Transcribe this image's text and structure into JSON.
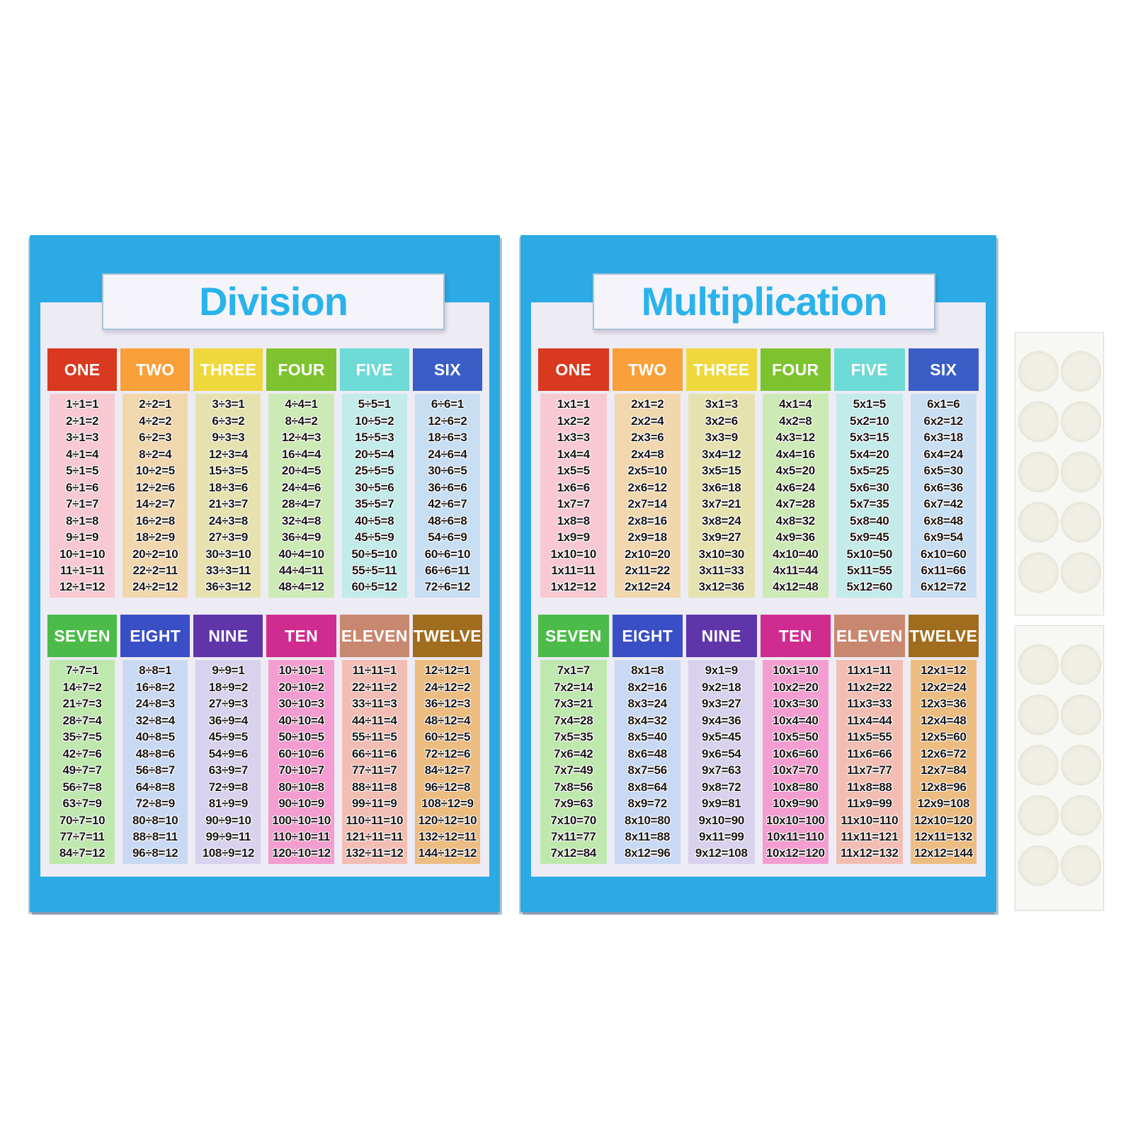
{
  "scene": {
    "background": "#ffffff"
  },
  "posters": [
    {
      "id": "division-poster",
      "title": "Division",
      "colors": {
        "frame": "#2caae3",
        "panel": "#edebf3",
        "title_text": "#2ab3ea",
        "title_box_bg": "#f5f4fa",
        "title_box_border": "#a9c3d6",
        "fact_text": "#181414"
      },
      "blocks": [
        {
          "columns": [
            {
              "label": "ONE",
              "header_color": "#d8391f",
              "body_color": "#f8c9d3",
              "facts": [
                "1÷1=1",
                "2÷1=2",
                "3÷1=3",
                "4÷1=4",
                "5÷1=5",
                "6÷1=6",
                "7÷1=7",
                "8÷1=8",
                "9÷1=9",
                "10÷1=10",
                "11÷1=11",
                "12÷1=12"
              ]
            },
            {
              "label": "TWO",
              "header_color": "#f9a03a",
              "body_color": "#f1d7ad",
              "facts": [
                "2÷2=1",
                "4÷2=2",
                "6÷2=3",
                "8÷2=4",
                "10÷2=5",
                "12÷2=6",
                "14÷2=7",
                "16÷2=8",
                "18÷2=9",
                "20÷2=10",
                "22÷2=11",
                "24÷2=12"
              ]
            },
            {
              "label": "THREE",
              "header_color": "#efd83e",
              "body_color": "#e6e2af",
              "facts": [
                "3÷3=1",
                "6÷3=2",
                "9÷3=3",
                "12÷3=4",
                "15÷3=5",
                "18÷3=6",
                "21÷3=7",
                "24÷3=8",
                "27÷3=9",
                "30÷3=10",
                "33÷3=11",
                "36÷3=12"
              ]
            },
            {
              "label": "FOUR",
              "header_color": "#7dc32f",
              "body_color": "#cceab5",
              "facts": [
                "4÷4=1",
                "8÷4=2",
                "12÷4=3",
                "16÷4=4",
                "20÷4=5",
                "24÷4=6",
                "28÷4=7",
                "32÷4=8",
                "36÷4=9",
                "40÷4=10",
                "44÷4=11",
                "48÷4=12"
              ]
            },
            {
              "label": "FIVE",
              "header_color": "#6edad5",
              "body_color": "#c2ebea",
              "facts": [
                "5÷5=1",
                "10÷5=2",
                "15÷5=3",
                "20÷5=4",
                "25÷5=5",
                "30÷5=6",
                "35÷5=7",
                "40÷5=8",
                "45÷5=9",
                "50÷5=10",
                "55÷5=11",
                "60÷5=12"
              ]
            },
            {
              "label": "SIX",
              "header_color": "#3a5ec6",
              "body_color": "#c8def3",
              "facts": [
                "6÷6=1",
                "12÷6=2",
                "18÷6=3",
                "24÷6=4",
                "30÷6=5",
                "36÷6=6",
                "42÷6=7",
                "48÷6=8",
                "54÷6=9",
                "60÷6=10",
                "66÷6=11",
                "72÷6=12"
              ]
            }
          ]
        },
        {
          "columns": [
            {
              "label": "SEVEN",
              "header_color": "#4cbb49",
              "body_color": "#bee8ad",
              "facts": [
                "7÷7=1",
                "14÷7=2",
                "21÷7=3",
                "28÷7=4",
                "35÷7=5",
                "42÷7=6",
                "49÷7=7",
                "56÷7=8",
                "63÷7=9",
                "70÷7=10",
                "77÷7=11",
                "84÷7=12"
              ]
            },
            {
              "label": "EIGHT",
              "header_color": "#3a4ec5",
              "body_color": "#cad9f3",
              "facts": [
                "8÷8=1",
                "16÷8=2",
                "24÷8=3",
                "32÷8=4",
                "40÷8=5",
                "48÷8=6",
                "56÷8=7",
                "64÷8=8",
                "72÷8=9",
                "80÷8=10",
                "88÷8=11",
                "96÷8=12"
              ]
            },
            {
              "label": "NINE",
              "header_color": "#5f35a9",
              "body_color": "#d8d2ee",
              "facts": [
                "9÷9=1",
                "18÷9=2",
                "27÷9=3",
                "36÷9=4",
                "45÷9=5",
                "54÷9=6",
                "63÷9=7",
                "72÷9=8",
                "81÷9=9",
                "90÷9=10",
                "99÷9=11",
                "108÷9=12"
              ]
            },
            {
              "label": "TEN",
              "header_color": "#d02b8f",
              "body_color": "#f49dd1",
              "facts": [
                "10÷10=1",
                "20÷10=2",
                "30÷10=3",
                "40÷10=4",
                "50÷10=5",
                "60÷10=6",
                "70÷10=7",
                "80÷10=8",
                "90÷10=9",
                "100÷10=10",
                "110÷10=11",
                "120÷10=12"
              ]
            },
            {
              "label": "ELEVEN",
              "header_color": "#c8876f",
              "body_color": "#f2beb3",
              "facts": [
                "11÷11=1",
                "22÷11=2",
                "33÷11=3",
                "44÷11=4",
                "55÷11=5",
                "66÷11=6",
                "77÷11=7",
                "88÷11=8",
                "99÷11=9",
                "110÷11=10",
                "121÷11=11",
                "132÷11=12"
              ]
            },
            {
              "label": "TWELVE",
              "header_color": "#a06c1e",
              "body_color": "#ecbc81",
              "facts": [
                "12÷12=1",
                "24÷12=2",
                "36÷12=3",
                "48÷12=4",
                "60÷12=5",
                "72÷12=6",
                "84÷12=7",
                "96÷12=8",
                "108÷12=9",
                "120÷12=10",
                "132÷12=11",
                "144÷12=12"
              ]
            }
          ]
        }
      ]
    },
    {
      "id": "multiplication-poster",
      "title": "Multiplication",
      "colors": {
        "frame": "#2caae3",
        "panel": "#edebf3",
        "title_text": "#2ab3ea",
        "title_box_bg": "#f5f4fa",
        "title_box_border": "#a9c3d6",
        "fact_text": "#181414"
      },
      "blocks": [
        {
          "columns": [
            {
              "label": "ONE",
              "header_color": "#d8391f",
              "body_color": "#f8c9d3",
              "facts": [
                "1x1=1",
                "1x2=2",
                "1x3=3",
                "1x4=4",
                "1x5=5",
                "1x6=6",
                "1x7=7",
                "1x8=8",
                "1x9=9",
                "1x10=10",
                "1x11=11",
                "1x12=12"
              ]
            },
            {
              "label": "TWO",
              "header_color": "#f9a03a",
              "body_color": "#f1d7ad",
              "facts": [
                "2x1=2",
                "2x2=4",
                "2x3=6",
                "2x4=8",
                "2x5=10",
                "2x6=12",
                "2x7=14",
                "2x8=16",
                "2x9=18",
                "2x10=20",
                "2x11=22",
                "2x12=24"
              ]
            },
            {
              "label": "THREE",
              "header_color": "#efd83e",
              "body_color": "#e6e2af",
              "facts": [
                "3x1=3",
                "3x2=6",
                "3x3=9",
                "3x4=12",
                "3x5=15",
                "3x6=18",
                "3x7=21",
                "3x8=24",
                "3x9=27",
                "3x10=30",
                "3x11=33",
                "3x12=36"
              ]
            },
            {
              "label": "FOUR",
              "header_color": "#7dc32f",
              "body_color": "#cceab5",
              "facts": [
                "4x1=4",
                "4x2=8",
                "4x3=12",
                "4x4=16",
                "4x5=20",
                "4x6=24",
                "4x7=28",
                "4x8=32",
                "4x9=36",
                "4x10=40",
                "4x11=44",
                "4x12=48"
              ]
            },
            {
              "label": "FIVE",
              "header_color": "#6edad5",
              "body_color": "#c2ebea",
              "facts": [
                "5x1=5",
                "5x2=10",
                "5x3=15",
                "5x4=20",
                "5x5=25",
                "5x6=30",
                "5x7=35",
                "5x8=40",
                "5x9=45",
                "5x10=50",
                "5x11=55",
                "5x12=60"
              ]
            },
            {
              "label": "SIX",
              "header_color": "#3a5ec6",
              "body_color": "#c8def3",
              "facts": [
                "6x1=6",
                "6x2=12",
                "6x3=18",
                "6x4=24",
                "6x5=30",
                "6x6=36",
                "6x7=42",
                "6x8=48",
                "6x9=54",
                "6x10=60",
                "6x11=66",
                "6x12=72"
              ]
            }
          ]
        },
        {
          "columns": [
            {
              "label": "SEVEN",
              "header_color": "#4cbb49",
              "body_color": "#bee8ad",
              "facts": [
                "7x1=7",
                "7x2=14",
                "7x3=21",
                "7x4=28",
                "7x5=35",
                "7x6=42",
                "7x7=49",
                "7x8=56",
                "7x9=63",
                "7x10=70",
                "7x11=77",
                "7x12=84"
              ]
            },
            {
              "label": "EIGHT",
              "header_color": "#3a4ec5",
              "body_color": "#cad9f3",
              "facts": [
                "8x1=8",
                "8x2=16",
                "8x3=24",
                "8x4=32",
                "8x5=40",
                "8x6=48",
                "8x7=56",
                "8x8=64",
                "8x9=72",
                "8x10=80",
                "8x11=88",
                "8x12=96"
              ]
            },
            {
              "label": "NINE",
              "header_color": "#5f35a9",
              "body_color": "#d8d2ee",
              "facts": [
                "9x1=9",
                "9x2=18",
                "9x3=27",
                "9x4=36",
                "9x5=45",
                "9x6=54",
                "9x7=63",
                "9x8=72",
                "9x9=81",
                "9x10=90",
                "9x11=99",
                "9x12=108"
              ]
            },
            {
              "label": "TEN",
              "header_color": "#d02b8f",
              "body_color": "#f49dd1",
              "facts": [
                "10x1=10",
                "10x2=20",
                "10x3=30",
                "10x4=40",
                "10x5=50",
                "10x6=60",
                "10x7=70",
                "10x8=80",
                "10x9=90",
                "10x10=100",
                "10x11=110",
                "10x12=120"
              ]
            },
            {
              "label": "ELEVEN",
              "header_color": "#c8876f",
              "body_color": "#f2beb3",
              "facts": [
                "11x1=11",
                "11x2=22",
                "11x3=33",
                "11x4=44",
                "11x5=55",
                "11x6=66",
                "11x7=77",
                "11x8=88",
                "11x9=99",
                "11x10=110",
                "11x11=121",
                "11x12=132"
              ]
            },
            {
              "label": "TWELVE",
              "header_color": "#a06c1e",
              "body_color": "#ecbc81",
              "facts": [
                "12x1=12",
                "12x2=24",
                "12x3=36",
                "12x4=48",
                "12x5=60",
                "12x6=72",
                "12x7=84",
                "12x8=96",
                "12x9=108",
                "12x10=120",
                "12x11=132",
                "12x12=144"
              ]
            }
          ]
        }
      ]
    }
  ],
  "sticker_sheets": [
    {
      "dots": 10,
      "rows": 5,
      "cols": 2,
      "sheet_bg": "#f7f7f4",
      "dot_color": "#f0efe5",
      "dot_border": "#e3e2d3"
    },
    {
      "dots": 10,
      "rows": 5,
      "cols": 2,
      "sheet_bg": "#f7f7f4",
      "dot_color": "#f0efe5",
      "dot_border": "#e3e2d3"
    }
  ]
}
